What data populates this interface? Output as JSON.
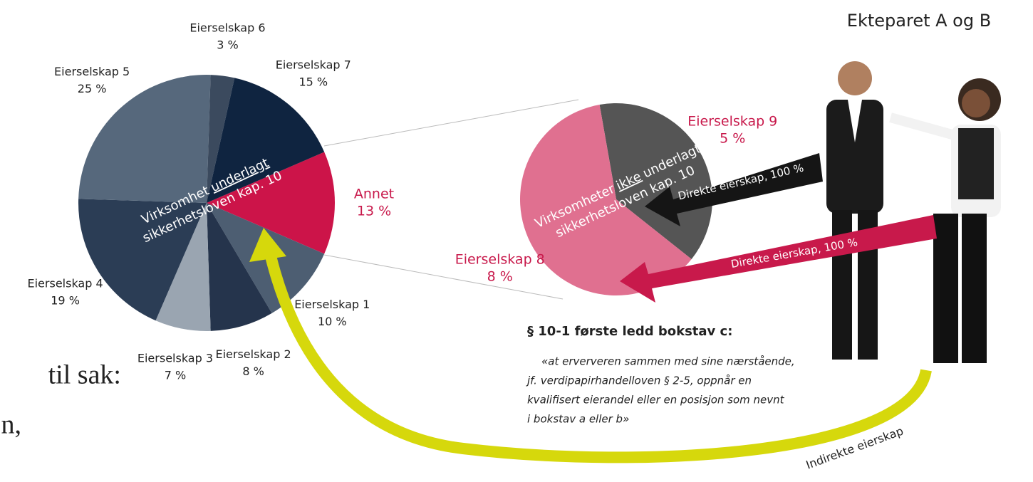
{
  "chart_data": [
    {
      "type": "pie",
      "center_label": [
        "Virksomhet",
        "underlagt",
        "sikkerhetsloven kap. 10"
      ],
      "categories": [
        "Annet",
        "Eierselskap 1",
        "Eierselskap 2",
        "Eierselskap 3",
        "Eierselskap 4",
        "Eierselskap 5",
        "Eierselskap 6",
        "Eierselskap 7"
      ],
      "values": [
        13,
        10,
        8,
        7,
        19,
        25,
        3,
        15
      ],
      "value_labels": [
        "13 %",
        "10 %",
        "8 %",
        "7 %",
        "19 %",
        "25 %",
        "3 %",
        "15 %"
      ],
      "colors": [
        "#cc1449",
        "#4d5e72",
        "#25344c",
        "#9aa5b1",
        "#2b3d55",
        "#56687c",
        "#3b4a5e",
        "#0f2440"
      ]
    },
    {
      "type": "pie",
      "center_label": [
        "Virksomheter",
        "ikke",
        "underlagt",
        "sikkerhetsloven kap. 10"
      ],
      "categories": [
        "Eierselskap 9",
        "Eierselskap 8"
      ],
      "values": [
        5,
        8
      ],
      "value_labels": [
        "5 %",
        "8 %"
      ],
      "colors": [
        "#555555",
        "#e07090"
      ]
    }
  ],
  "owners": "Ekteparet A og B",
  "arrows": [
    "Direkte eierskap, 100 %",
    "Direkte eierskap, 100 %",
    "Indirekte eierskap"
  ],
  "legal": {
    "heading": "§ 10-1 første ledd bokstav c:",
    "quote": [
      "«at erververen sammen med sine nærstående,",
      "jf. verdipapirhandelloven § 2-5, oppnår en",
      "kvalifisert eierandel eller en posisjon som nevnt",
      "i bokstav a eller b»"
    ]
  },
  "fragments": [
    "til sak:",
    "n,"
  ]
}
